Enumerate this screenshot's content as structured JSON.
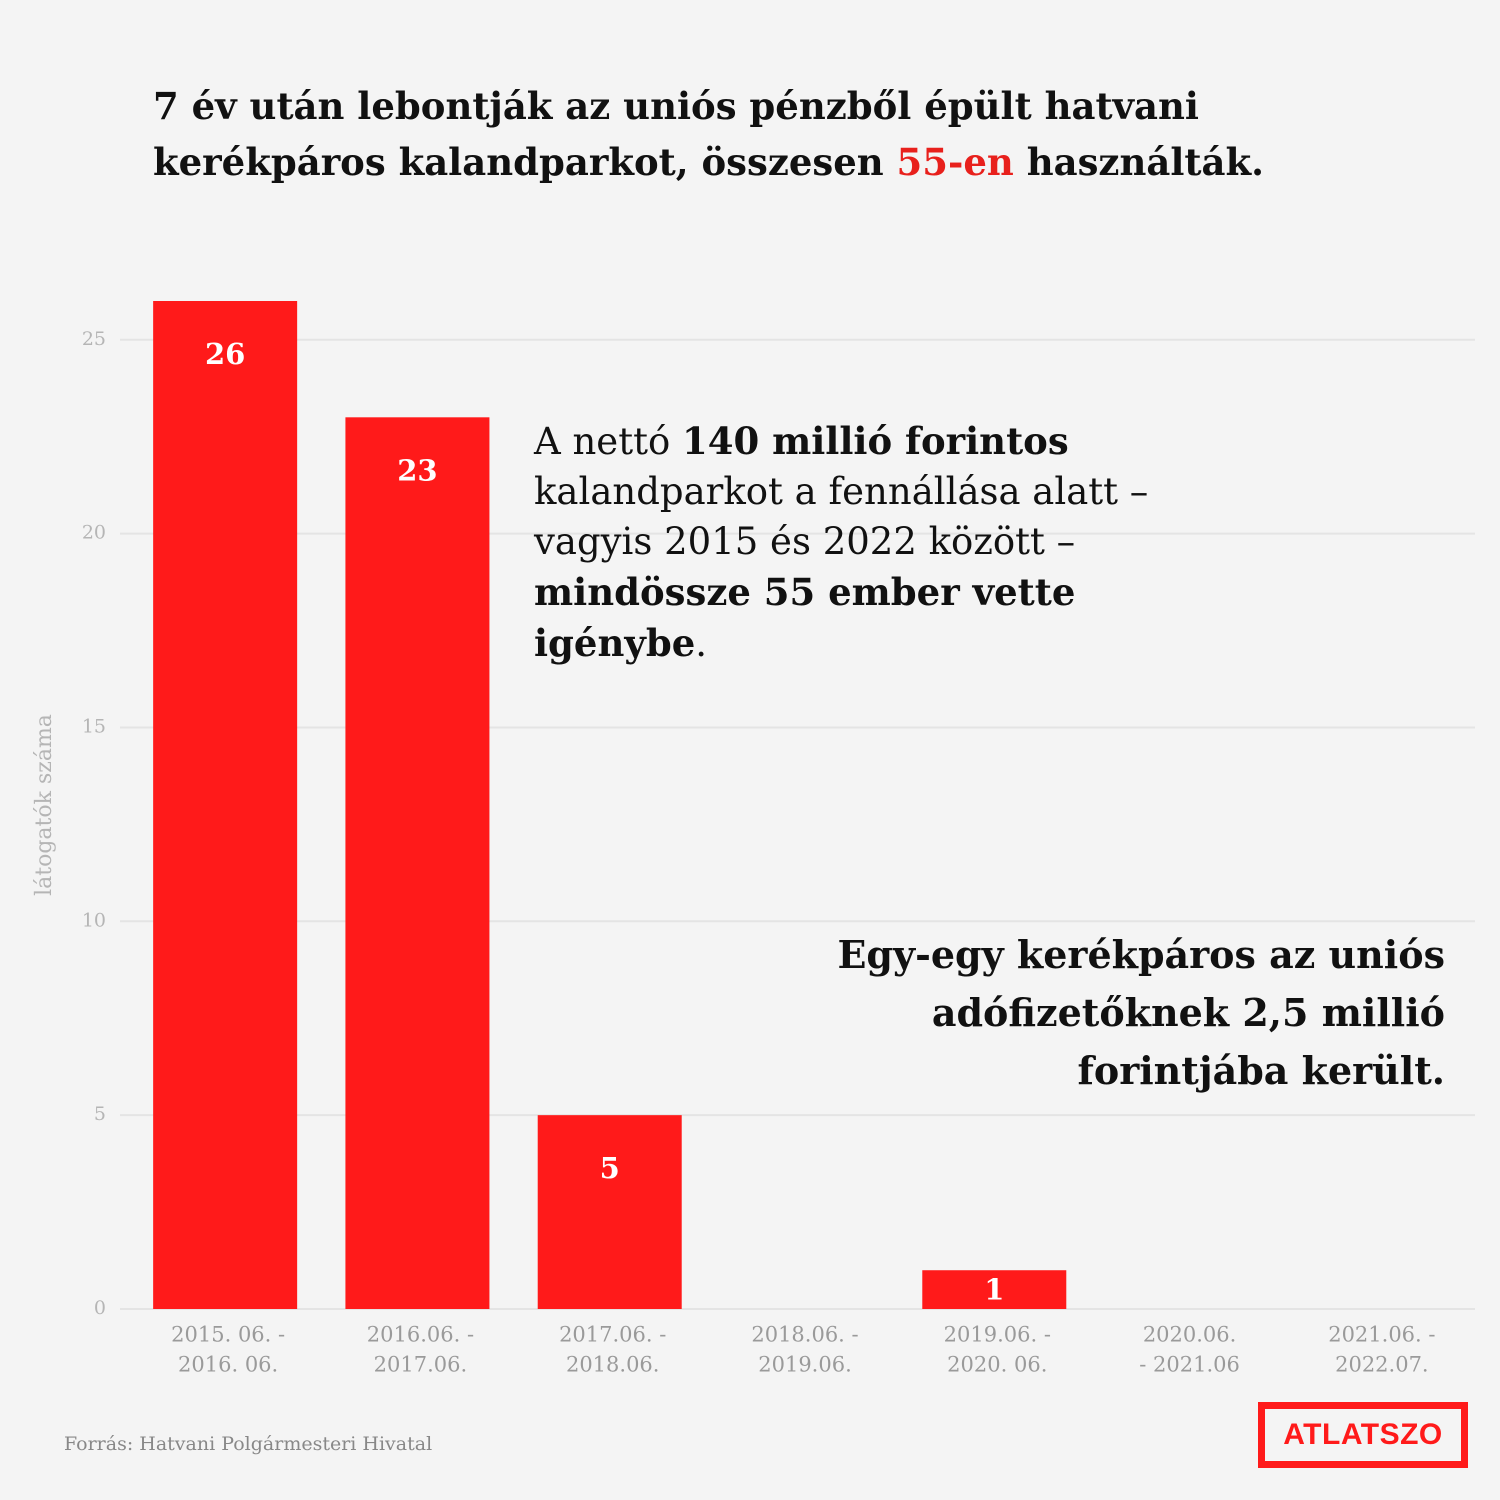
{
  "chart_data": {
    "type": "bar",
    "title": [
      [
        {
          "text": "7 év után lebontják az uniós pénzből épült hatvani"
        }
      ],
      [
        {
          "text": "kerékpáros kalandparkot, összesen "
        },
        {
          "text": "55-en",
          "color": "#e8201c"
        },
        {
          "text": " használták."
        }
      ]
    ],
    "categories": [
      [
        "2015. 06. -",
        "2016. 06."
      ],
      [
        "2016.06. -",
        "2017.06."
      ],
      [
        "2017.06. -",
        "2018.06."
      ],
      [
        "2018.06. -",
        "2019.06."
      ],
      [
        "2019.06. -",
        "2020. 06."
      ],
      [
        "2020.06.",
        "- 2021.06"
      ],
      [
        "2021.06. -",
        "2022.07."
      ]
    ],
    "values": [
      26,
      23,
      5,
      0,
      1,
      0,
      0
    ],
    "color": "#ff1a1a",
    "ylabel": "látogatók száma",
    "ylim": [
      0,
      26
    ],
    "yticks": [
      0,
      5,
      10,
      15,
      20,
      25
    ],
    "grid": true,
    "annotations": [
      [
        {
          "text": "A nettó "
        },
        {
          "text": "140 millió forintos",
          "bold": true
        },
        {
          "text": " kalandparkot a fennállása alatt – vagyis 2015 és 2022 között – "
        },
        {
          "text": "mindössze 55 ember vette igénybe",
          "bold": true
        },
        {
          "text": "."
        }
      ],
      [
        {
          "text": "Egy-egy kerékpáros az uniós adófizetőknek 2,5 millió forintjába került.",
          "bold": true
        }
      ]
    ],
    "source": "Forrás: Hatvani Polgármesteri Hivatal",
    "logo": "ATLATSZO"
  }
}
